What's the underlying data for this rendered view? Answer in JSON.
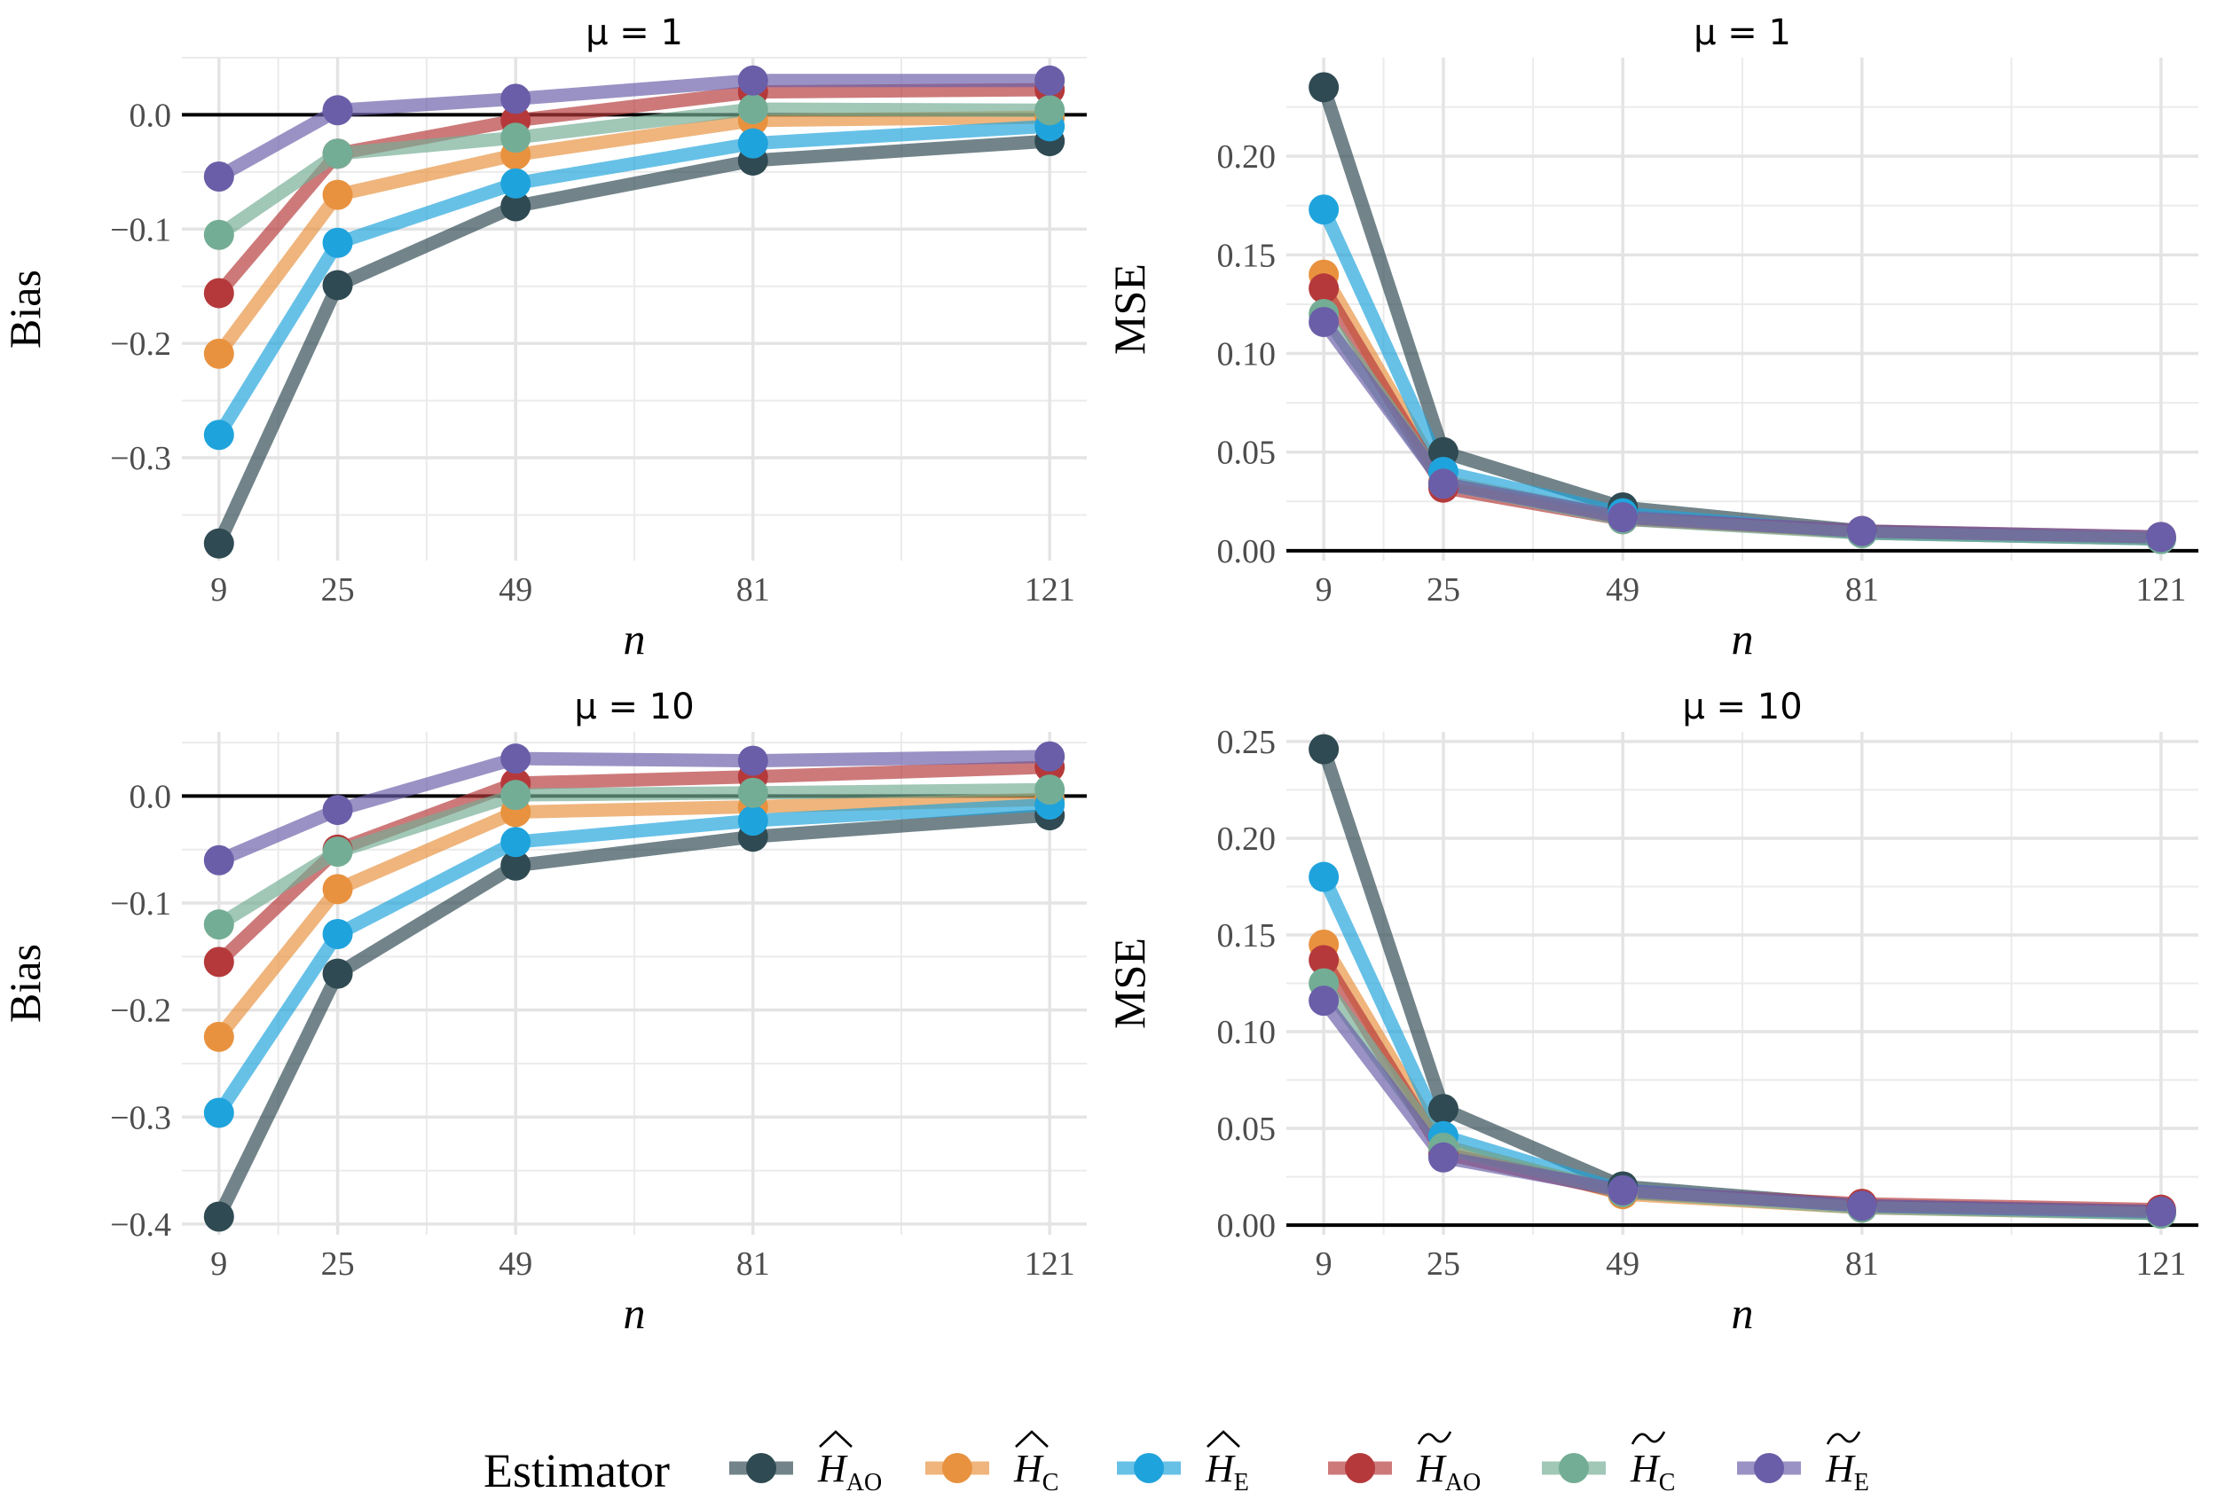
{
  "legend": {
    "title": "Estimator",
    "items": [
      {
        "base": "H",
        "accent": "hat",
        "sub": "AO",
        "color": "#2f4a52"
      },
      {
        "base": "H",
        "accent": "hat",
        "sub": "C",
        "color": "#e8923f"
      },
      {
        "base": "H",
        "accent": "hat",
        "sub": "E",
        "color": "#1fa3dc"
      },
      {
        "base": "H",
        "accent": "tilde",
        "sub": "AO",
        "color": "#b5393b"
      },
      {
        "base": "H",
        "accent": "tilde",
        "sub": "C",
        "color": "#74ad95"
      },
      {
        "base": "H",
        "accent": "tilde",
        "sub": "E",
        "color": "#6a5ea8"
      }
    ]
  },
  "chart_data": [
    {
      "type": "line",
      "title": "μ = 1",
      "xlabel": "n",
      "ylabel": "Bias",
      "x": [
        9,
        25,
        49,
        81,
        121
      ],
      "xlim": [
        4,
        126
      ],
      "ylim": [
        -0.39,
        0.05
      ],
      "yticks": [
        -0.3,
        -0.2,
        -0.1,
        0.0
      ],
      "ytick_labels": [
        "−0.3",
        "−0.2",
        "−0.1",
        "0.0"
      ],
      "reference_line": 0,
      "grid": true,
      "series": [
        {
          "values": [
            -0.375,
            -0.149,
            -0.08,
            -0.04,
            -0.023
          ]
        },
        {
          "values": [
            -0.209,
            -0.07,
            -0.035,
            -0.005,
            -0.002
          ]
        },
        {
          "values": [
            -0.28,
            -0.112,
            -0.06,
            -0.025,
            -0.01
          ]
        },
        {
          "values": [
            -0.156,
            -0.034,
            -0.005,
            0.02,
            0.022
          ]
        },
        {
          "values": [
            -0.105,
            -0.034,
            -0.02,
            0.005,
            0.004
          ]
        },
        {
          "values": [
            -0.054,
            0.004,
            0.014,
            0.03,
            0.03
          ]
        }
      ]
    },
    {
      "type": "line",
      "title": "μ = 1",
      "xlabel": "n",
      "ylabel": "MSE",
      "x": [
        9,
        25,
        49,
        81,
        121
      ],
      "xlim": [
        4,
        126
      ],
      "ylim": [
        -0.005,
        0.25
      ],
      "yticks": [
        0.0,
        0.05,
        0.1,
        0.15,
        0.2
      ],
      "ytick_labels": [
        "0.00",
        "0.05",
        "0.10",
        "0.15",
        "0.20"
      ],
      "reference_line": 0,
      "grid": true,
      "series": [
        {
          "values": [
            0.235,
            0.05,
            0.022,
            0.01,
            0.006
          ]
        },
        {
          "values": [
            0.14,
            0.035,
            0.017,
            0.009,
            0.006
          ]
        },
        {
          "values": [
            0.173,
            0.04,
            0.019,
            0.009,
            0.006
          ]
        },
        {
          "values": [
            0.133,
            0.032,
            0.016,
            0.01,
            0.007
          ]
        },
        {
          "values": [
            0.12,
            0.034,
            0.016,
            0.009,
            0.006
          ]
        },
        {
          "values": [
            0.116,
            0.034,
            0.017,
            0.01,
            0.007
          ]
        }
      ]
    },
    {
      "type": "line",
      "title": "μ = 10",
      "xlabel": "n",
      "ylabel": "Bias",
      "x": [
        9,
        25,
        49,
        81,
        121
      ],
      "xlim": [
        4,
        126
      ],
      "ylim": [
        -0.41,
        0.06
      ],
      "yticks": [
        -0.4,
        -0.3,
        -0.2,
        -0.1,
        0.0
      ],
      "ytick_labels": [
        "−0.4",
        "−0.3",
        "−0.2",
        "−0.1",
        "0.0"
      ],
      "reference_line": 0,
      "grid": true,
      "series": [
        {
          "values": [
            -0.393,
            -0.166,
            -0.065,
            -0.038,
            -0.018
          ]
        },
        {
          "values": [
            -0.225,
            -0.087,
            -0.015,
            -0.01,
            -0.003
          ]
        },
        {
          "values": [
            -0.296,
            -0.129,
            -0.043,
            -0.023,
            -0.008
          ]
        },
        {
          "values": [
            -0.155,
            -0.05,
            0.012,
            0.018,
            0.027
          ]
        },
        {
          "values": [
            -0.12,
            -0.052,
            0.001,
            0.003,
            0.006
          ]
        },
        {
          "values": [
            -0.06,
            -0.013,
            0.035,
            0.033,
            0.037
          ]
        }
      ]
    },
    {
      "type": "line",
      "title": "μ = 10",
      "xlabel": "n",
      "ylabel": "MSE",
      "x": [
        9,
        25,
        49,
        81,
        121
      ],
      "xlim": [
        4,
        126
      ],
      "ylim": [
        -0.005,
        0.255
      ],
      "yticks": [
        0.0,
        0.05,
        0.1,
        0.15,
        0.2,
        0.25
      ],
      "ytick_labels": [
        "0.00",
        "0.05",
        "0.10",
        "0.15",
        "0.20",
        "0.25"
      ],
      "reference_line": 0,
      "grid": true,
      "series": [
        {
          "values": [
            0.246,
            0.06,
            0.02,
            0.01,
            0.007
          ]
        },
        {
          "values": [
            0.145,
            0.041,
            0.016,
            0.009,
            0.006
          ]
        },
        {
          "values": [
            0.18,
            0.046,
            0.018,
            0.01,
            0.006
          ]
        },
        {
          "values": [
            0.137,
            0.037,
            0.017,
            0.011,
            0.008
          ]
        },
        {
          "values": [
            0.125,
            0.04,
            0.017,
            0.009,
            0.006
          ]
        },
        {
          "values": [
            0.116,
            0.035,
            0.018,
            0.01,
            0.007
          ]
        }
      ]
    }
  ]
}
